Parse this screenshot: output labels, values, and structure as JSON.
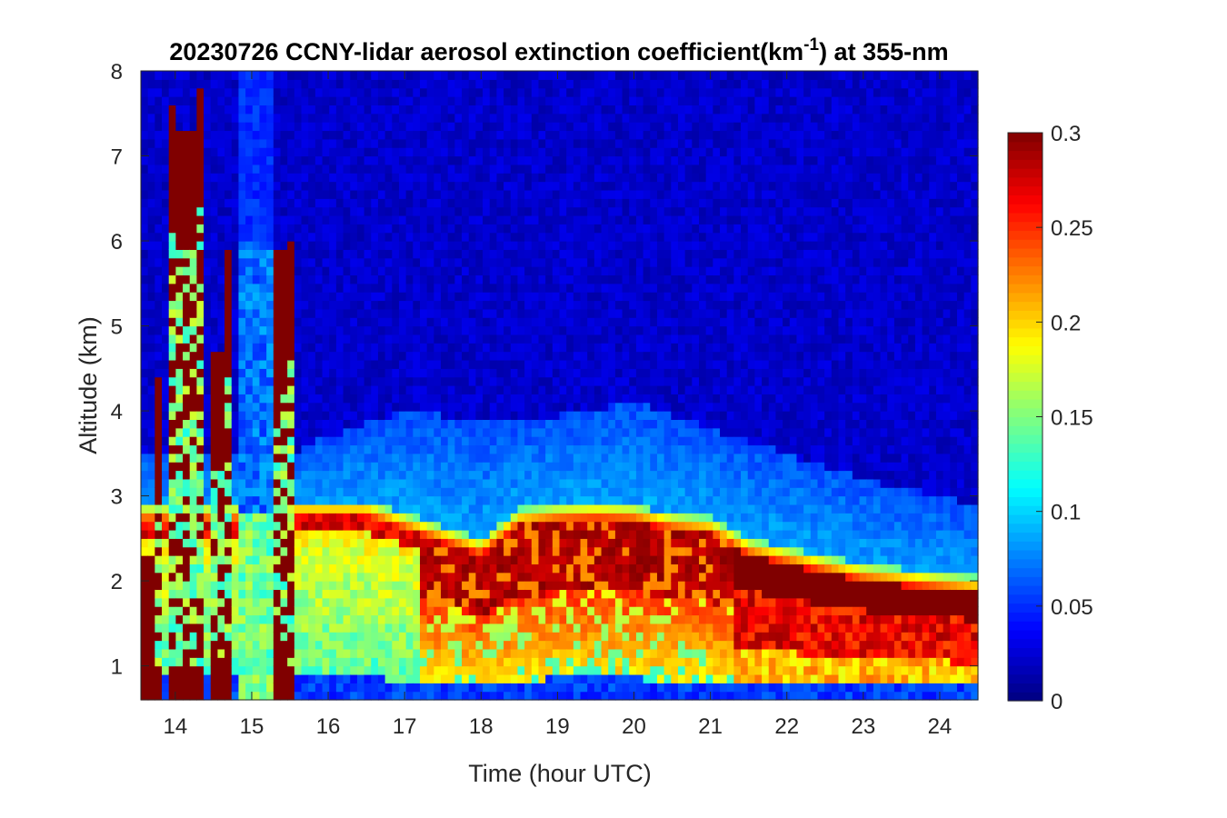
{
  "chart_data": {
    "type": "heatmap",
    "title": {
      "main": "20230726 CCNY-lidar aerosol extinction coefficient(km",
      "superscript": "-1",
      "suffix": ") at 355-nm"
    },
    "xlabel": "Time (hour UTC)",
    "ylabel": "Altitude (km)",
    "xlim": [
      13.55,
      24.5
    ],
    "ylim": [
      0.6,
      8
    ],
    "xticks": [
      14,
      15,
      16,
      17,
      18,
      19,
      20,
      21,
      22,
      23,
      24
    ],
    "yticks": [
      1,
      2,
      3,
      4,
      5,
      6,
      7,
      8
    ],
    "colorbar": {
      "colormap": "jet",
      "range": [
        0,
        0.3
      ],
      "ticks": [
        0,
        0.05,
        0.1,
        0.15,
        0.2,
        0.25,
        0.3
      ],
      "tick_labels": [
        "0",
        "0.05",
        "0.1",
        "0.15",
        "0.2",
        "0.25",
        "0.3"
      ]
    },
    "features": {
      "boundary_layer_top_km": [
        [
          13.8,
          2.7
        ],
        [
          14.5,
          2.7
        ],
        [
          15.0,
          2.7
        ],
        [
          15.5,
          2.75
        ],
        [
          16.0,
          2.75
        ],
        [
          16.5,
          2.75
        ],
        [
          17.0,
          2.6
        ],
        [
          17.5,
          2.45
        ],
        [
          18.0,
          2.3
        ],
        [
          18.5,
          2.65
        ],
        [
          19.0,
          2.7
        ],
        [
          19.5,
          2.72
        ],
        [
          20.0,
          2.7
        ],
        [
          20.5,
          2.6
        ],
        [
          21.0,
          2.55
        ],
        [
          21.5,
          2.3
        ],
        [
          22.0,
          2.2
        ],
        [
          22.5,
          2.1
        ],
        [
          23.0,
          2.0
        ],
        [
          23.5,
          1.95
        ],
        [
          24.0,
          1.9
        ],
        [
          24.5,
          1.85
        ]
      ],
      "free_troposphere_layer_top_km": [
        [
          15.5,
          3.5
        ],
        [
          16.0,
          3.7
        ],
        [
          17.0,
          4.0
        ],
        [
          18.0,
          3.9
        ],
        [
          19.0,
          3.95
        ],
        [
          20.0,
          4.1
        ],
        [
          21.0,
          3.8
        ],
        [
          22.0,
          3.5
        ],
        [
          23.0,
          3.2
        ],
        [
          24.0,
          3.0
        ],
        [
          24.5,
          2.9
        ]
      ],
      "high_extinction_columns": [
        {
          "t0": 13.55,
          "t1": 13.7,
          "top_km": 2.3
        },
        {
          "t0": 13.7,
          "t1": 13.85,
          "top_km": 4.4
        },
        {
          "t0": 13.9,
          "t1": 14.05,
          "top_km": 7.55
        },
        {
          "t0": 14.05,
          "t1": 14.25,
          "top_km": 7.25
        },
        {
          "t0": 14.25,
          "t1": 14.4,
          "top_km": 7.75
        },
        {
          "t0": 14.45,
          "t1": 14.6,
          "top_km": 4.7
        },
        {
          "t0": 14.6,
          "t1": 14.78,
          "top_km": 5.85
        },
        {
          "t0": 15.28,
          "t1": 15.45,
          "top_km": 5.85
        },
        {
          "t0": 15.45,
          "t1": 15.6,
          "top_km": 6.0
        }
      ]
    }
  }
}
